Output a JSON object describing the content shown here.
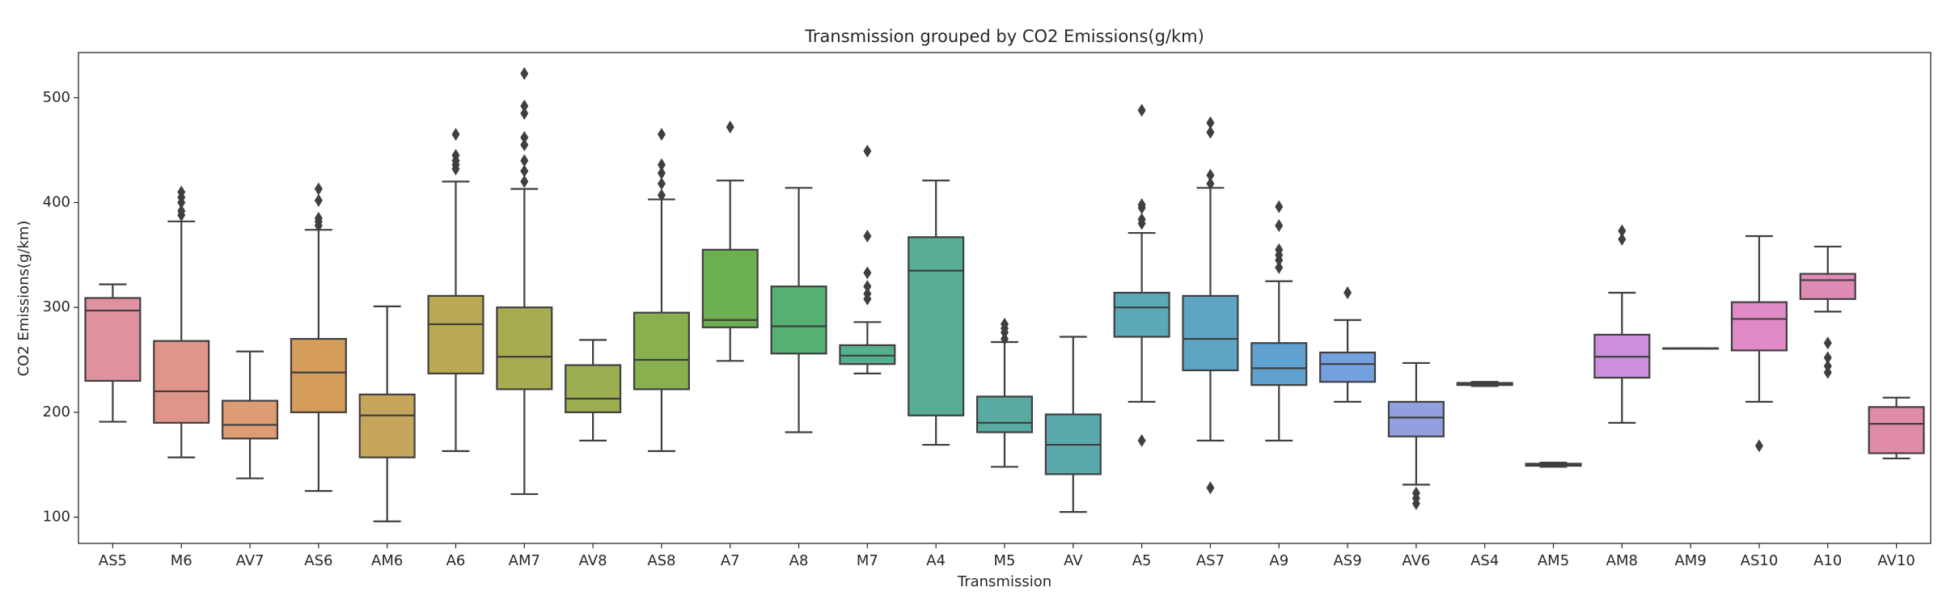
{
  "chart_data": {
    "type": "box",
    "title": "Transmission grouped by CO2 Emissions(g/km)",
    "x_label": "Transmission",
    "y_label": "CO2 Emissions(g/km)",
    "categories": [
      "AS5",
      "M6",
      "AV7",
      "AS6",
      "AM6",
      "A6",
      "AM7",
      "AV8",
      "AS8",
      "A7",
      "A8",
      "M7",
      "A4",
      "M5",
      "AV",
      "A5",
      "AS7",
      "A9",
      "AS9",
      "AV6",
      "AS4",
      "AM5",
      "AM8",
      "AM9",
      "AS10",
      "A10",
      "AV10"
    ],
    "boxes": [
      {
        "whislo": 191,
        "q1": 230,
        "med": 297,
        "q3": 309,
        "whishi": 322,
        "fliers": [],
        "color": "#e0919f"
      },
      {
        "whislo": 157,
        "q1": 190,
        "med": 220,
        "q3": 268,
        "whishi": 382,
        "fliers": [
          388,
          392,
          400,
          405,
          410
        ],
        "color": "#e0958a"
      },
      {
        "whislo": 137,
        "q1": 175,
        "med": 188,
        "q3": 211,
        "whishi": 258,
        "fliers": [],
        "color": "#de9c72"
      },
      {
        "whislo": 125,
        "q1": 200,
        "med": 238,
        "q3": 270,
        "whishi": 374,
        "fliers": [
          378,
          382,
          385,
          402,
          413
        ],
        "color": "#d49d5b"
      },
      {
        "whislo": 96,
        "q1": 157,
        "med": 197,
        "q3": 217,
        "whishi": 301,
        "fliers": [],
        "color": "#c6a55c"
      },
      {
        "whislo": 163,
        "q1": 237,
        "med": 284,
        "q3": 311,
        "whishi": 420,
        "fliers": [
          432,
          436,
          440,
          445,
          465
        ],
        "color": "#b8a952"
      },
      {
        "whislo": 122,
        "q1": 222,
        "med": 253,
        "q3": 300,
        "whishi": 413,
        "fliers": [
          420,
          430,
          440,
          455,
          462,
          485,
          492,
          523
        ],
        "color": "#a8ac50"
      },
      {
        "whislo": 173,
        "q1": 200,
        "med": 213,
        "q3": 245,
        "whishi": 269,
        "fliers": [],
        "color": "#9bae52"
      },
      {
        "whislo": 163,
        "q1": 222,
        "med": 250,
        "q3": 295,
        "whishi": 403,
        "fliers": [
          407,
          418,
          428,
          436,
          465
        ],
        "color": "#88b04f"
      },
      {
        "whislo": 249,
        "q1": 281,
        "med": 288,
        "q3": 355,
        "whishi": 421,
        "fliers": [
          472
        ],
        "color": "#6cb052"
      },
      {
        "whislo": 181,
        "q1": 256,
        "med": 282,
        "q3": 320,
        "whishi": 414,
        "fliers": [],
        "color": "#55b073"
      },
      {
        "whislo": 237,
        "q1": 246,
        "med": 254,
        "q3": 264,
        "whishi": 286,
        "fliers": [
          308,
          313,
          320,
          333,
          368,
          449
        ],
        "color": "#56af8c"
      },
      {
        "whislo": 169,
        "q1": 197,
        "med": 335,
        "q3": 367,
        "whishi": 421,
        "fliers": [],
        "color": "#58ad96"
      },
      {
        "whislo": 148,
        "q1": 181,
        "med": 190,
        "q3": 215,
        "whishi": 267,
        "fliers": [
          270,
          276,
          280,
          284
        ],
        "color": "#59aba1"
      },
      {
        "whislo": 105,
        "q1": 141,
        "med": 169,
        "q3": 198,
        "whishi": 272,
        "fliers": [],
        "color": "#5aaaab"
      },
      {
        "whislo": 210,
        "q1": 272,
        "med": 300,
        "q3": 314,
        "whishi": 371,
        "fliers": [
          173,
          380,
          384,
          395,
          398,
          488
        ],
        "color": "#5ba8b7"
      },
      {
        "whislo": 173,
        "q1": 240,
        "med": 270,
        "q3": 311,
        "whishi": 414,
        "fliers": [
          128,
          418,
          426,
          467,
          476
        ],
        "color": "#5da5c3"
      },
      {
        "whislo": 173,
        "q1": 226,
        "med": 242,
        "q3": 266,
        "whishi": 325,
        "fliers": [
          338,
          345,
          350,
          355,
          378,
          396
        ],
        "color": "#60a1d0"
      },
      {
        "whislo": 210,
        "q1": 229,
        "med": 246,
        "q3": 257,
        "whishi": 288,
        "fliers": [
          314
        ],
        "color": "#74a0e0"
      },
      {
        "whislo": 131,
        "q1": 177,
        "med": 195,
        "q3": 210,
        "whishi": 247,
        "fliers": [
          113,
          118,
          123
        ],
        "color": "#93a0e0"
      },
      {
        "whislo": 225,
        "q1": 226,
        "med": 227,
        "q3": 228,
        "whishi": 229,
        "fliers": [],
        "color": "#a99ae0"
      },
      {
        "whislo": 148,
        "q1": 149,
        "med": 150,
        "q3": 151,
        "whishi": 152,
        "fliers": [],
        "color": "#b994e0"
      },
      {
        "whislo": 190,
        "q1": 233,
        "med": 253,
        "q3": 274,
        "whishi": 314,
        "fliers": [
          365,
          373
        ],
        "color": "#cc8fe0"
      },
      {
        "whislo": 261,
        "q1": 261,
        "med": 261,
        "q3": 261,
        "whishi": 261,
        "fliers": [],
        "color": "#d98cd6"
      },
      {
        "whislo": 210,
        "q1": 259,
        "med": 289,
        "q3": 305,
        "whishi": 368,
        "fliers": [
          168
        ],
        "color": "#e08ac6"
      },
      {
        "whislo": 296,
        "q1": 308,
        "med": 326,
        "q3": 332,
        "whishi": 358,
        "fliers": [
          238,
          244,
          252,
          266
        ],
        "color": "#e08bb6"
      },
      {
        "whislo": 156,
        "q1": 161,
        "med": 189,
        "q3": 205,
        "whishi": 214,
        "fliers": [],
        "color": "#e08ca7"
      }
    ],
    "ylim": [
      75,
      543
    ],
    "yticks": [
      100,
      200,
      300,
      400,
      500
    ]
  }
}
